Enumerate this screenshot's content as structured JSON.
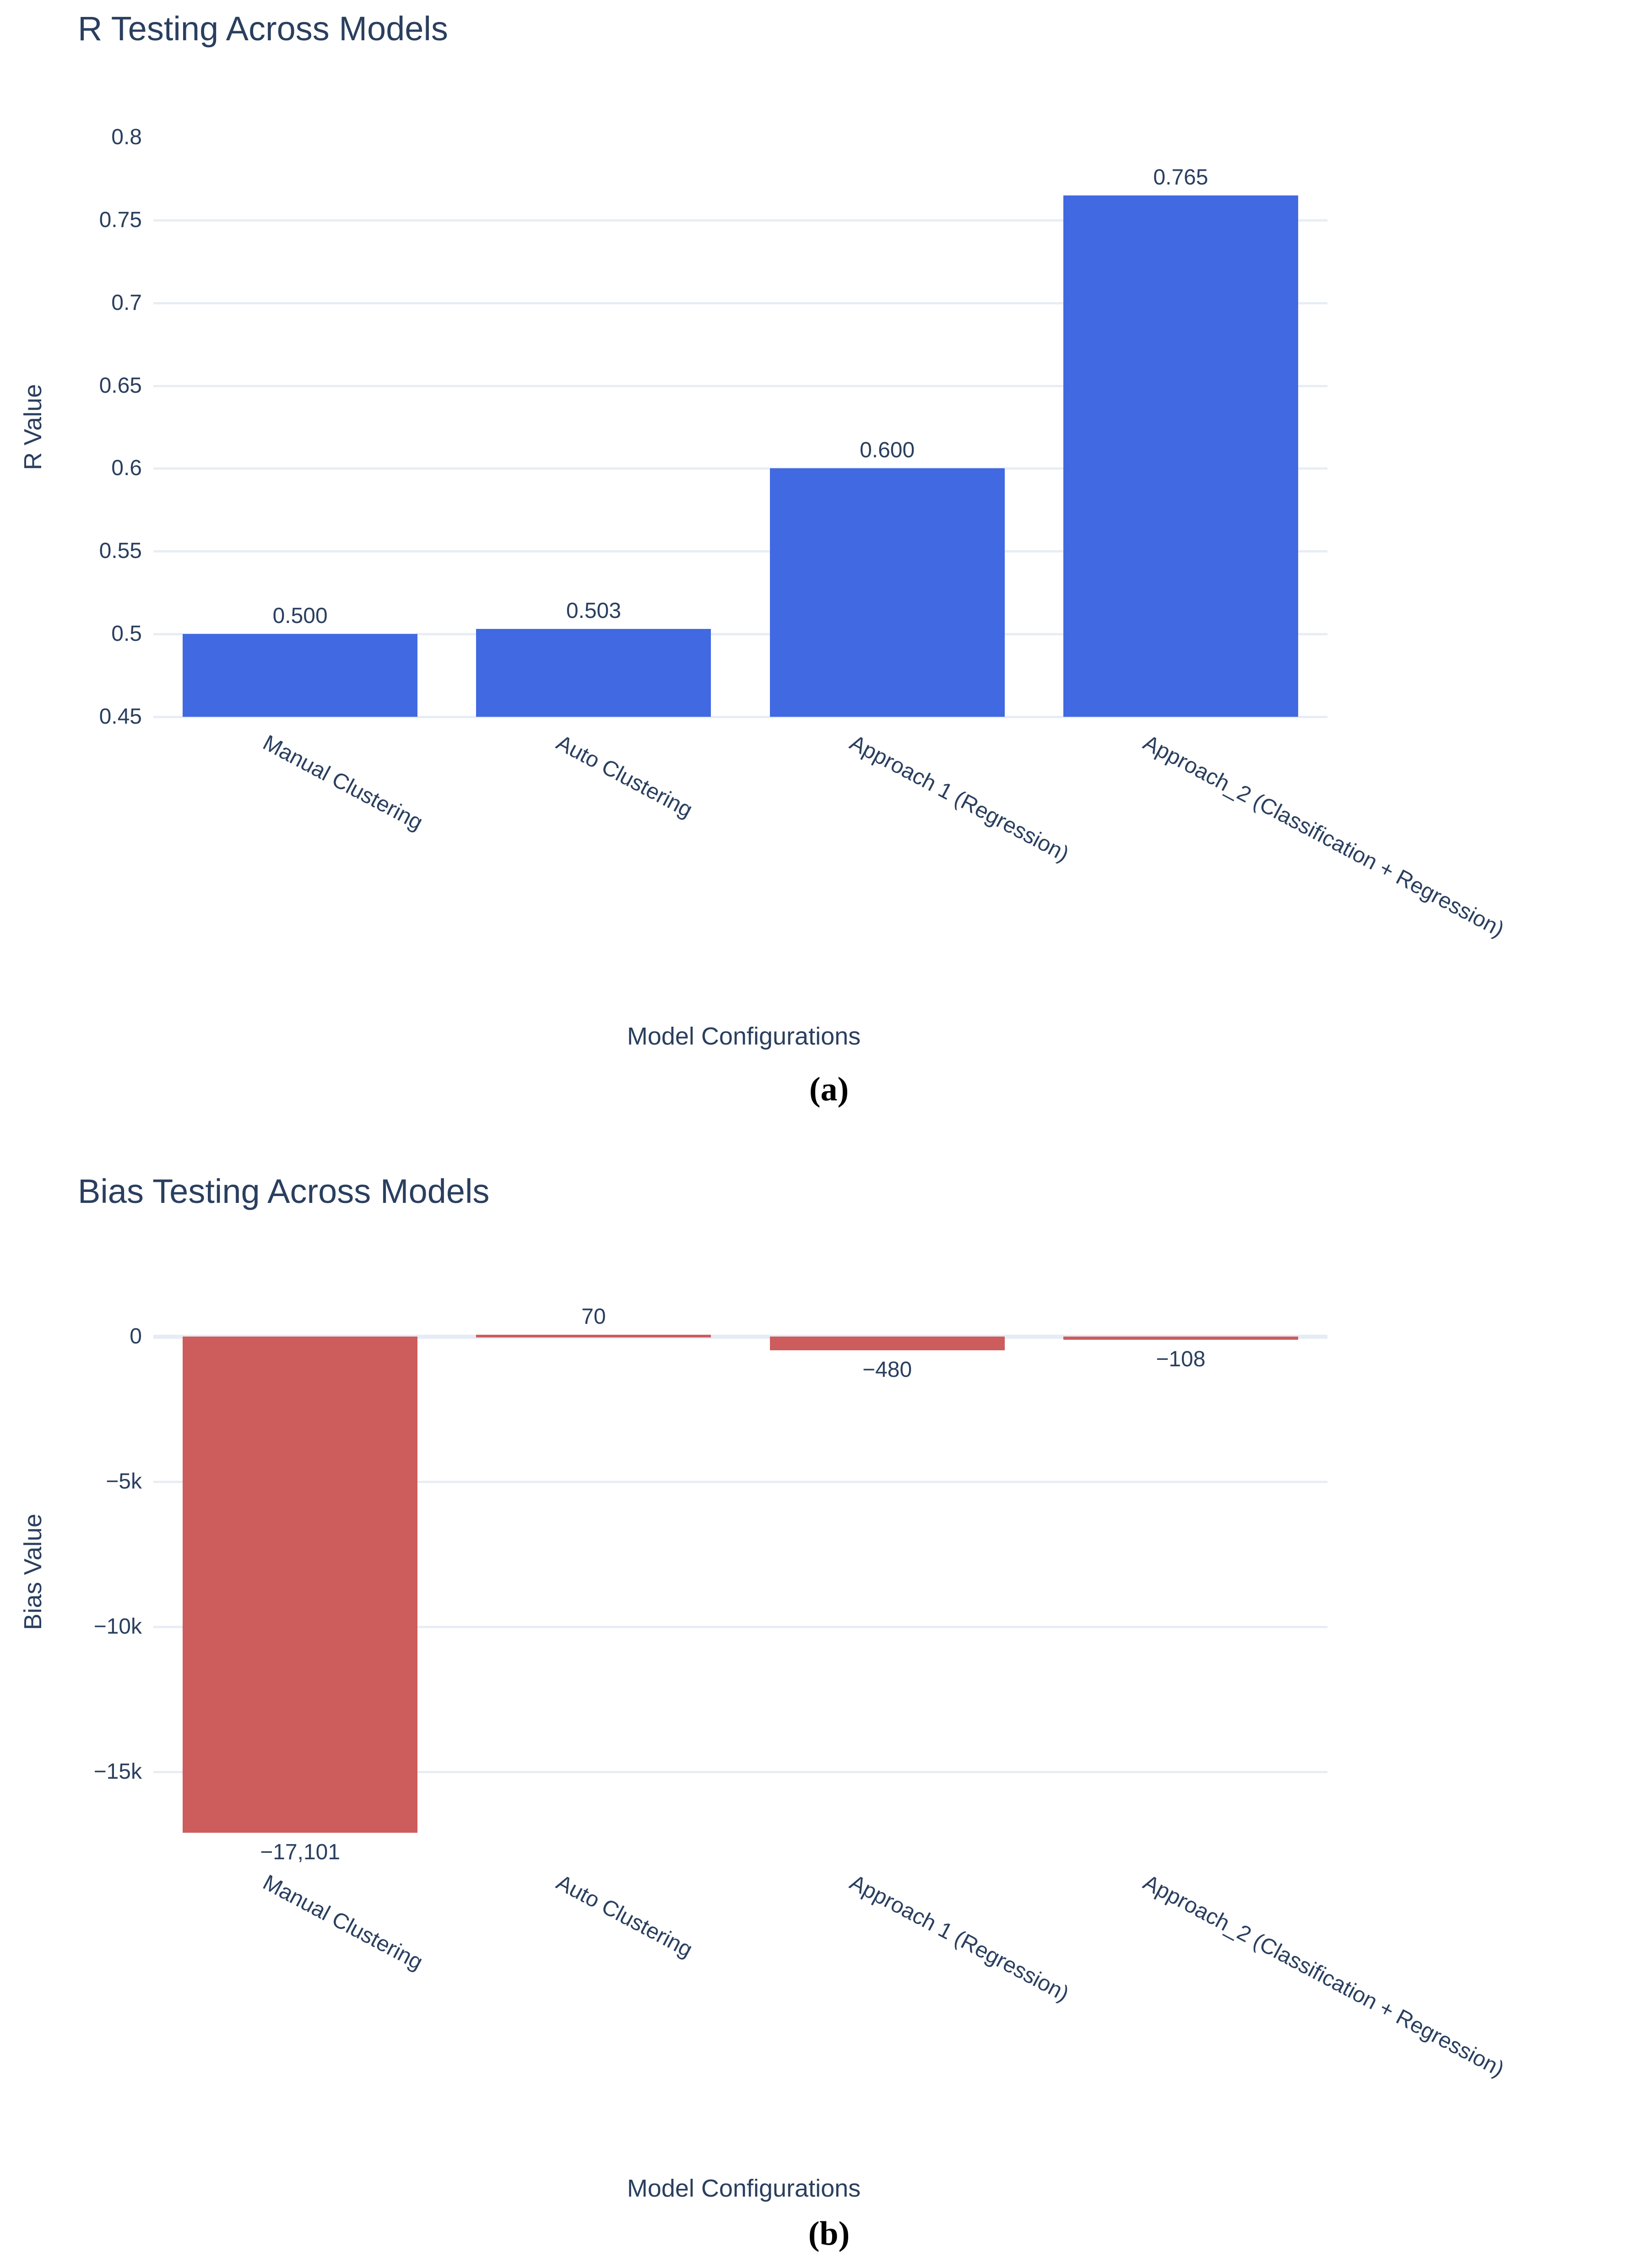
{
  "figure": {
    "background": "#ffffff",
    "text_color": "#2a3f5f",
    "grid_color": "#e8edf5",
    "zeroline_color": "#e6ecf5",
    "caption_color": "#000000"
  },
  "chart_data": [
    {
      "type": "bar",
      "title": "R Testing Across Models",
      "xlabel": "Model Configurations",
      "ylabel": "R Value",
      "caption": "(a)",
      "bar_color": "#4169e1",
      "categories": [
        "Manual Clustering",
        "Auto Clustering",
        "Approach 1 (Regression)",
        "Approach_2 (Classification + Regression)"
      ],
      "values": [
        0.5,
        0.503,
        0.6,
        0.765
      ],
      "value_labels": [
        "0.500",
        "0.503",
        "0.600",
        "0.765"
      ],
      "ylim": [
        0.45,
        0.8
      ],
      "ytick_values": [
        0.45,
        0.5,
        0.55,
        0.6,
        0.65,
        0.7,
        0.75,
        0.8
      ],
      "ytick_labels": [
        "0.45",
        "0.5",
        "0.55",
        "0.6",
        "0.65",
        "0.7",
        "0.75",
        "0.8"
      ],
      "grid": true,
      "legend": "none"
    },
    {
      "type": "bar",
      "title": "Bias Testing Across Models",
      "xlabel": "Model Configurations",
      "ylabel": "Bias Value",
      "caption": "(b)",
      "bar_color": "#cd5c5c",
      "categories": [
        "Manual Clustering",
        "Auto Clustering",
        "Approach 1 (Regression)",
        "Approach_2 (Classification + Regression)"
      ],
      "values": [
        -17101,
        70,
        -480,
        -108
      ],
      "value_labels": [
        "−17,101",
        "70",
        "−480",
        "−108"
      ],
      "ylim": [
        -17980,
        1420
      ],
      "ytick_values": [
        0,
        -5000,
        -10000,
        -15000
      ],
      "ytick_labels": [
        "0",
        "−5k",
        "−10k",
        "−15k"
      ],
      "grid": true,
      "zeroline": true,
      "legend": "none"
    }
  ]
}
